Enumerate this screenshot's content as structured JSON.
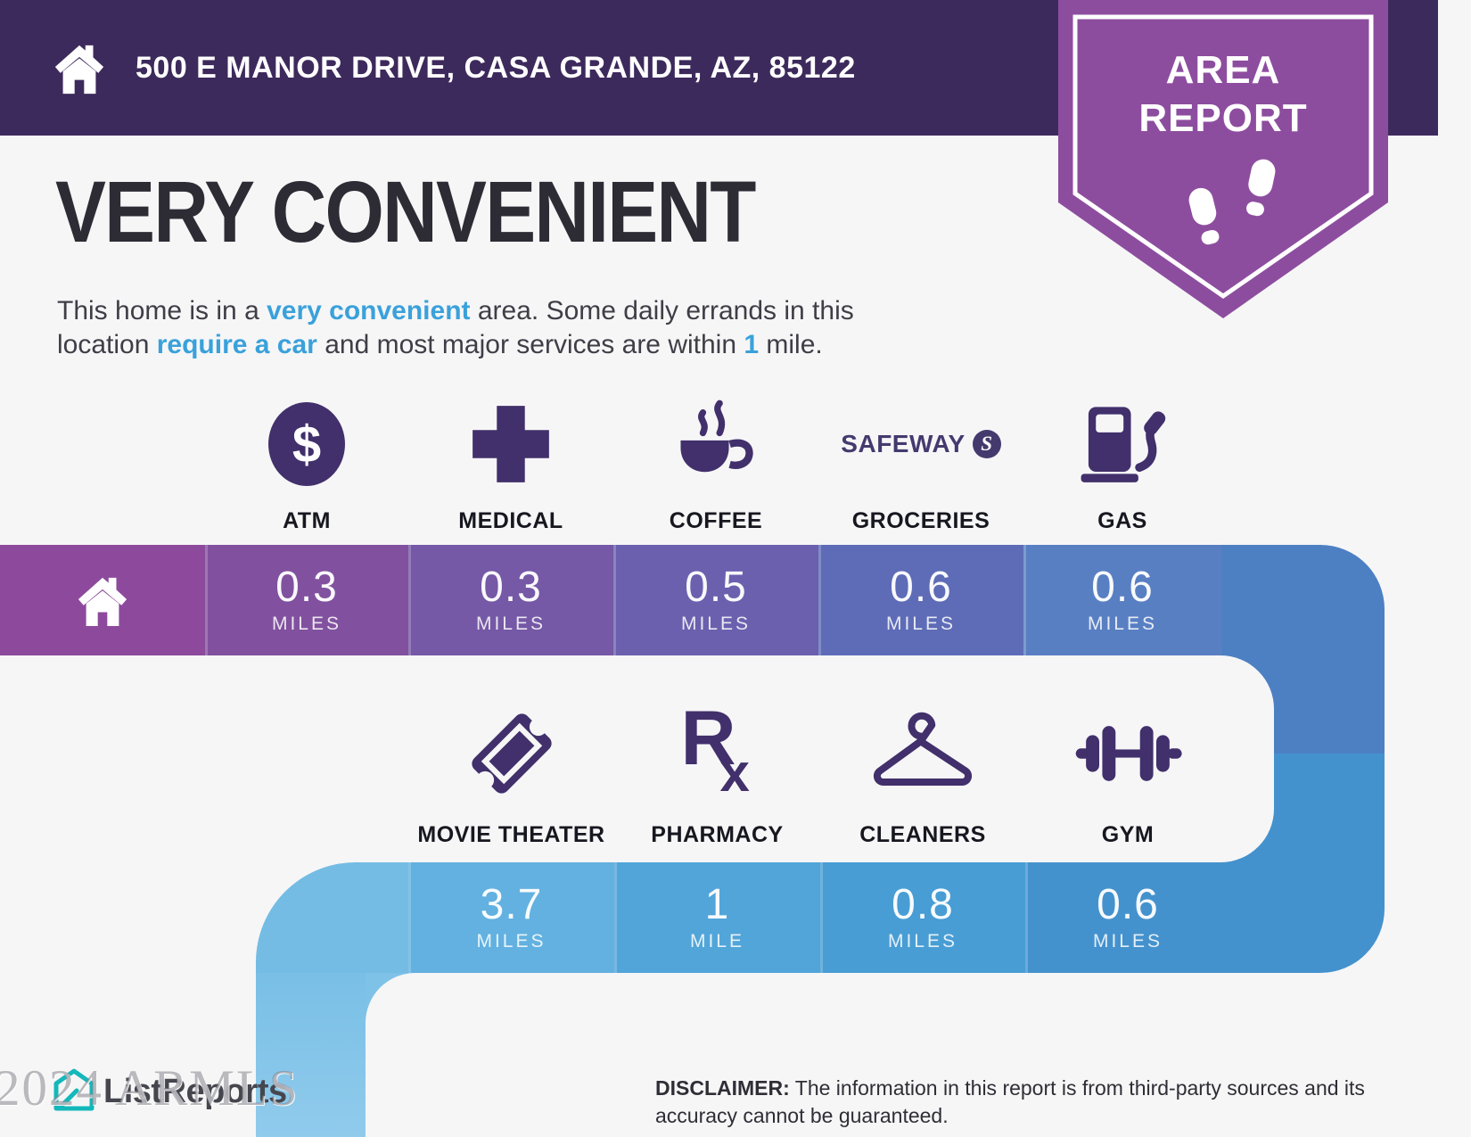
{
  "header": {
    "address": "500 E MANOR DRIVE, CASA GRANDE, AZ, 85122"
  },
  "badge": {
    "line1": "AREA",
    "line2": "REPORT"
  },
  "main": {
    "title": "VERY CONVENIENT"
  },
  "description": {
    "segments": [
      {
        "text": "This home is in a "
      },
      {
        "text": "very convenient",
        "highlight": true
      },
      {
        "text": " area. Some daily errands in this",
        "break": true
      },
      {
        "text": "location "
      },
      {
        "text": "require a car",
        "highlight": true
      },
      {
        "text": " and most major services are within "
      },
      {
        "text": "1",
        "highlight": true
      },
      {
        "text": " mile."
      }
    ]
  },
  "row1": {
    "services": [
      {
        "label": "ATM",
        "glyph": "$"
      },
      {
        "label": "MEDICAL"
      },
      {
        "label": "COFFEE"
      },
      {
        "label": "GROCERIES",
        "brand": "SAFEWAY",
        "monogram": "S"
      },
      {
        "label": "GAS"
      }
    ],
    "cells": [
      {
        "value": "0.3",
        "unit": "MILES"
      },
      {
        "value": "0.3",
        "unit": "MILES"
      },
      {
        "value": "0.5",
        "unit": "MILES"
      },
      {
        "value": "0.6",
        "unit": "MILES"
      },
      {
        "value": "0.6",
        "unit": "MILES"
      }
    ]
  },
  "row2": {
    "services": [
      {
        "label": "MOVIE THEATER"
      },
      {
        "label": "PHARMACY",
        "glyph_r": "R",
        "glyph_x": "x"
      },
      {
        "label": "CLEANERS"
      },
      {
        "label": "GYM"
      }
    ],
    "cells": [
      {
        "value": "3.7",
        "unit": "MILES"
      },
      {
        "value": "1",
        "unit": "MILE"
      },
      {
        "value": "0.8",
        "unit": "MILES"
      },
      {
        "value": "0.6",
        "unit": "MILES"
      }
    ]
  },
  "footer": {
    "watermark": "2024 ARMLS",
    "brand": "ListReports",
    "disclaimer_label": "DISCLAIMER:",
    "disclaimer_text": "The information in this report is from third-party sources and its accuracy cannot be guaranteed."
  },
  "colors": {
    "header_bg": "#3d2a5c",
    "badge_purple": "#8d4d9f",
    "accent_blue": "#3aa1da",
    "icon_purple": "#41306b",
    "bar1_cells": [
      "#8d4a9c",
      "#81519f",
      "#7558a6",
      "#6a60ae",
      "#5e6cb7",
      "#597fc3"
    ],
    "right_strip": [
      "#4d80c3",
      "#4492cd"
    ],
    "bar2_cells": [
      "#74bce4",
      "#62b1e0",
      "#51a5d9",
      "#489dd4",
      "#4492cd"
    ],
    "bottom_strip": "#84c4e8",
    "brand_teal": "#14b8ba"
  }
}
